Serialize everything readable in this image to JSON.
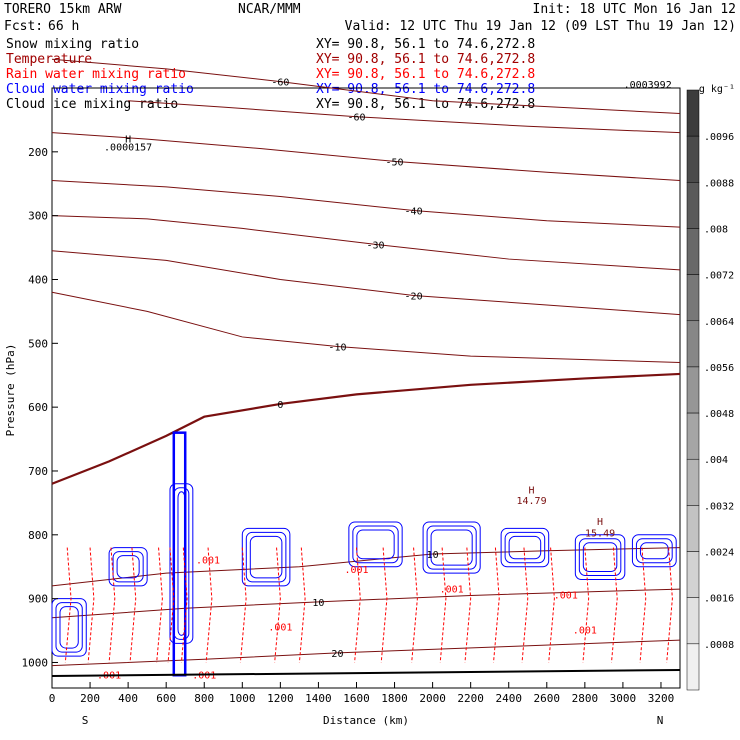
{
  "header": {
    "model": "TORERO  15km ARW",
    "center": "NCAR/MMM",
    "init": "Init: 18 UTC Mon 16 Jan 12",
    "fcst_label": "Fcst:",
    "fcst_value": "66 h",
    "valid": "Valid: 12 UTC Thu 19 Jan 12 (09 LST Thu 19 Jan 12)",
    "fields": [
      {
        "name": "Snow mixing ratio",
        "color": "#000000",
        "xy": "XY=  90.8, 56.1 to  74.6,272.8"
      },
      {
        "name": "Temperature",
        "color": "#a00000",
        "xy": "XY=  90.8, 56.1 to  74.6,272.8"
      },
      {
        "name": "Rain water mixing ratio",
        "color": "#ff0000",
        "xy": "XY=  90.8, 56.1 to  74.6,272.8"
      },
      {
        "name": "Cloud water mixing ratio",
        "color": "#0000ff",
        "xy": "XY=  90.8, 56.1 to  74.6,272.8"
      },
      {
        "name": "Cloud ice mixing ratio",
        "color": "#000000",
        "xy": "XY=  90.8, 56.1 to  74.6,272.8"
      }
    ]
  },
  "chart_data": {
    "type": "cross-section contour",
    "xlabel": "Distance (km)",
    "ylabel": "Pressure (hPa)",
    "xlim": [
      0,
      3300
    ],
    "ylim": [
      1040,
      100
    ],
    "x_ticks": [
      "0",
      "200",
      "400",
      "600",
      "800",
      "1000",
      "1200",
      "1400",
      "1600",
      "1800",
      "2000",
      "2200",
      "2400",
      "2600",
      "2800",
      "3000",
      "3200"
    ],
    "y_ticks": [
      "200",
      "300",
      "400",
      "500",
      "600",
      "700",
      "800",
      "900",
      "1000"
    ],
    "end_labels": {
      "left": "S",
      "right": "N"
    },
    "colors": {
      "temperature": "#7a1010",
      "rain": "#ff0000",
      "cloud_water": "#0000ff",
      "snow": "#000000"
    },
    "temperature_contours": [
      {
        "label": "-60",
        "points": [
          [
            0,
            55
          ],
          [
            600,
            70
          ],
          [
            1200,
            90
          ],
          [
            2000,
            120
          ],
          [
            3300,
            140
          ]
        ]
      },
      {
        "label": "-60",
        "points": [
          [
            400,
            120
          ],
          [
            900,
            130
          ],
          [
            1600,
            145
          ],
          [
            2500,
            160
          ],
          [
            3300,
            170
          ]
        ]
      },
      {
        "label": "-50",
        "points": [
          [
            0,
            170
          ],
          [
            500,
            180
          ],
          [
            1100,
            195
          ],
          [
            1800,
            215
          ],
          [
            2600,
            232
          ],
          [
            3300,
            245
          ]
        ]
      },
      {
        "label": "-40",
        "points": [
          [
            0,
            245
          ],
          [
            600,
            255
          ],
          [
            1200,
            270
          ],
          [
            1900,
            292
          ],
          [
            2600,
            308
          ],
          [
            3300,
            318
          ]
        ]
      },
      {
        "label": "-30",
        "points": [
          [
            0,
            300
          ],
          [
            500,
            305
          ],
          [
            1000,
            320
          ],
          [
            1700,
            345
          ],
          [
            2400,
            368
          ],
          [
            3300,
            385
          ]
        ]
      },
      {
        "label": "-20",
        "points": [
          [
            0,
            355
          ],
          [
            600,
            370
          ],
          [
            1200,
            400
          ],
          [
            1900,
            425
          ],
          [
            2600,
            440
          ],
          [
            3300,
            455
          ]
        ]
      },
      {
        "label": "-10",
        "points": [
          [
            0,
            420
          ],
          [
            500,
            450
          ],
          [
            1000,
            490
          ],
          [
            1500,
            505
          ],
          [
            2200,
            520
          ],
          [
            3300,
            530
          ]
        ]
      },
      {
        "label": "0",
        "points": [
          [
            0,
            720
          ],
          [
            300,
            685
          ],
          [
            600,
            645
          ],
          [
            800,
            615
          ],
          [
            1200,
            595
          ],
          [
            1600,
            580
          ],
          [
            2200,
            565
          ],
          [
            2800,
            555
          ],
          [
            3300,
            548
          ]
        ]
      },
      {
        "label": "10",
        "points": [
          [
            0,
            880
          ],
          [
            600,
            860
          ],
          [
            1300,
            850
          ],
          [
            2000,
            830
          ],
          [
            2600,
            825
          ],
          [
            3300,
            820
          ]
        ]
      },
      {
        "label": "10",
        "points": [
          [
            0,
            930
          ],
          [
            700,
            915
          ],
          [
            1400,
            905
          ],
          [
            2200,
            895
          ],
          [
            3300,
            885
          ]
        ]
      },
      {
        "label": "20",
        "points": [
          [
            0,
            1005
          ],
          [
            800,
            995
          ],
          [
            1500,
            985
          ],
          [
            2400,
            975
          ],
          [
            3300,
            965
          ]
        ]
      }
    ],
    "annotations": [
      {
        "text": "H",
        "x": 400,
        "y": 185
      },
      {
        "text": ".0000157",
        "x": 400,
        "y": 198
      },
      {
        "text": ".0003992",
        "x": 3130,
        "y": 100
      },
      {
        "text": "H",
        "x": 2520,
        "y": 735
      },
      {
        "text": "14.79",
        "x": 2520,
        "y": 752
      },
      {
        "text": "H",
        "x": 2880,
        "y": 785
      },
      {
        "text": "15.49",
        "x": 2880,
        "y": 803
      },
      {
        "text": ".001",
        "x": 820,
        "y": 845
      },
      {
        "text": ".001",
        "x": 1600,
        "y": 860
      },
      {
        "text": ".001",
        "x": 2100,
        "y": 890
      },
      {
        "text": ".001",
        "x": 2700,
        "y": 900
      },
      {
        "text": ".001",
        "x": 1200,
        "y": 950
      },
      {
        "text": ".001",
        "x": 2800,
        "y": 955
      },
      {
        "text": ".001",
        "x": 300,
        "y": 1025
      },
      {
        "text": ".001",
        "x": 800,
        "y": 1025
      }
    ],
    "colorbar": {
      "unit": "g kg⁻¹",
      "ticks": [
        ".0096",
        ".0088",
        ".008",
        ".0072",
        ".0064",
        ".0056",
        ".0048",
        ".004",
        ".0032",
        ".0024",
        ".0016",
        ".0008"
      ]
    }
  }
}
